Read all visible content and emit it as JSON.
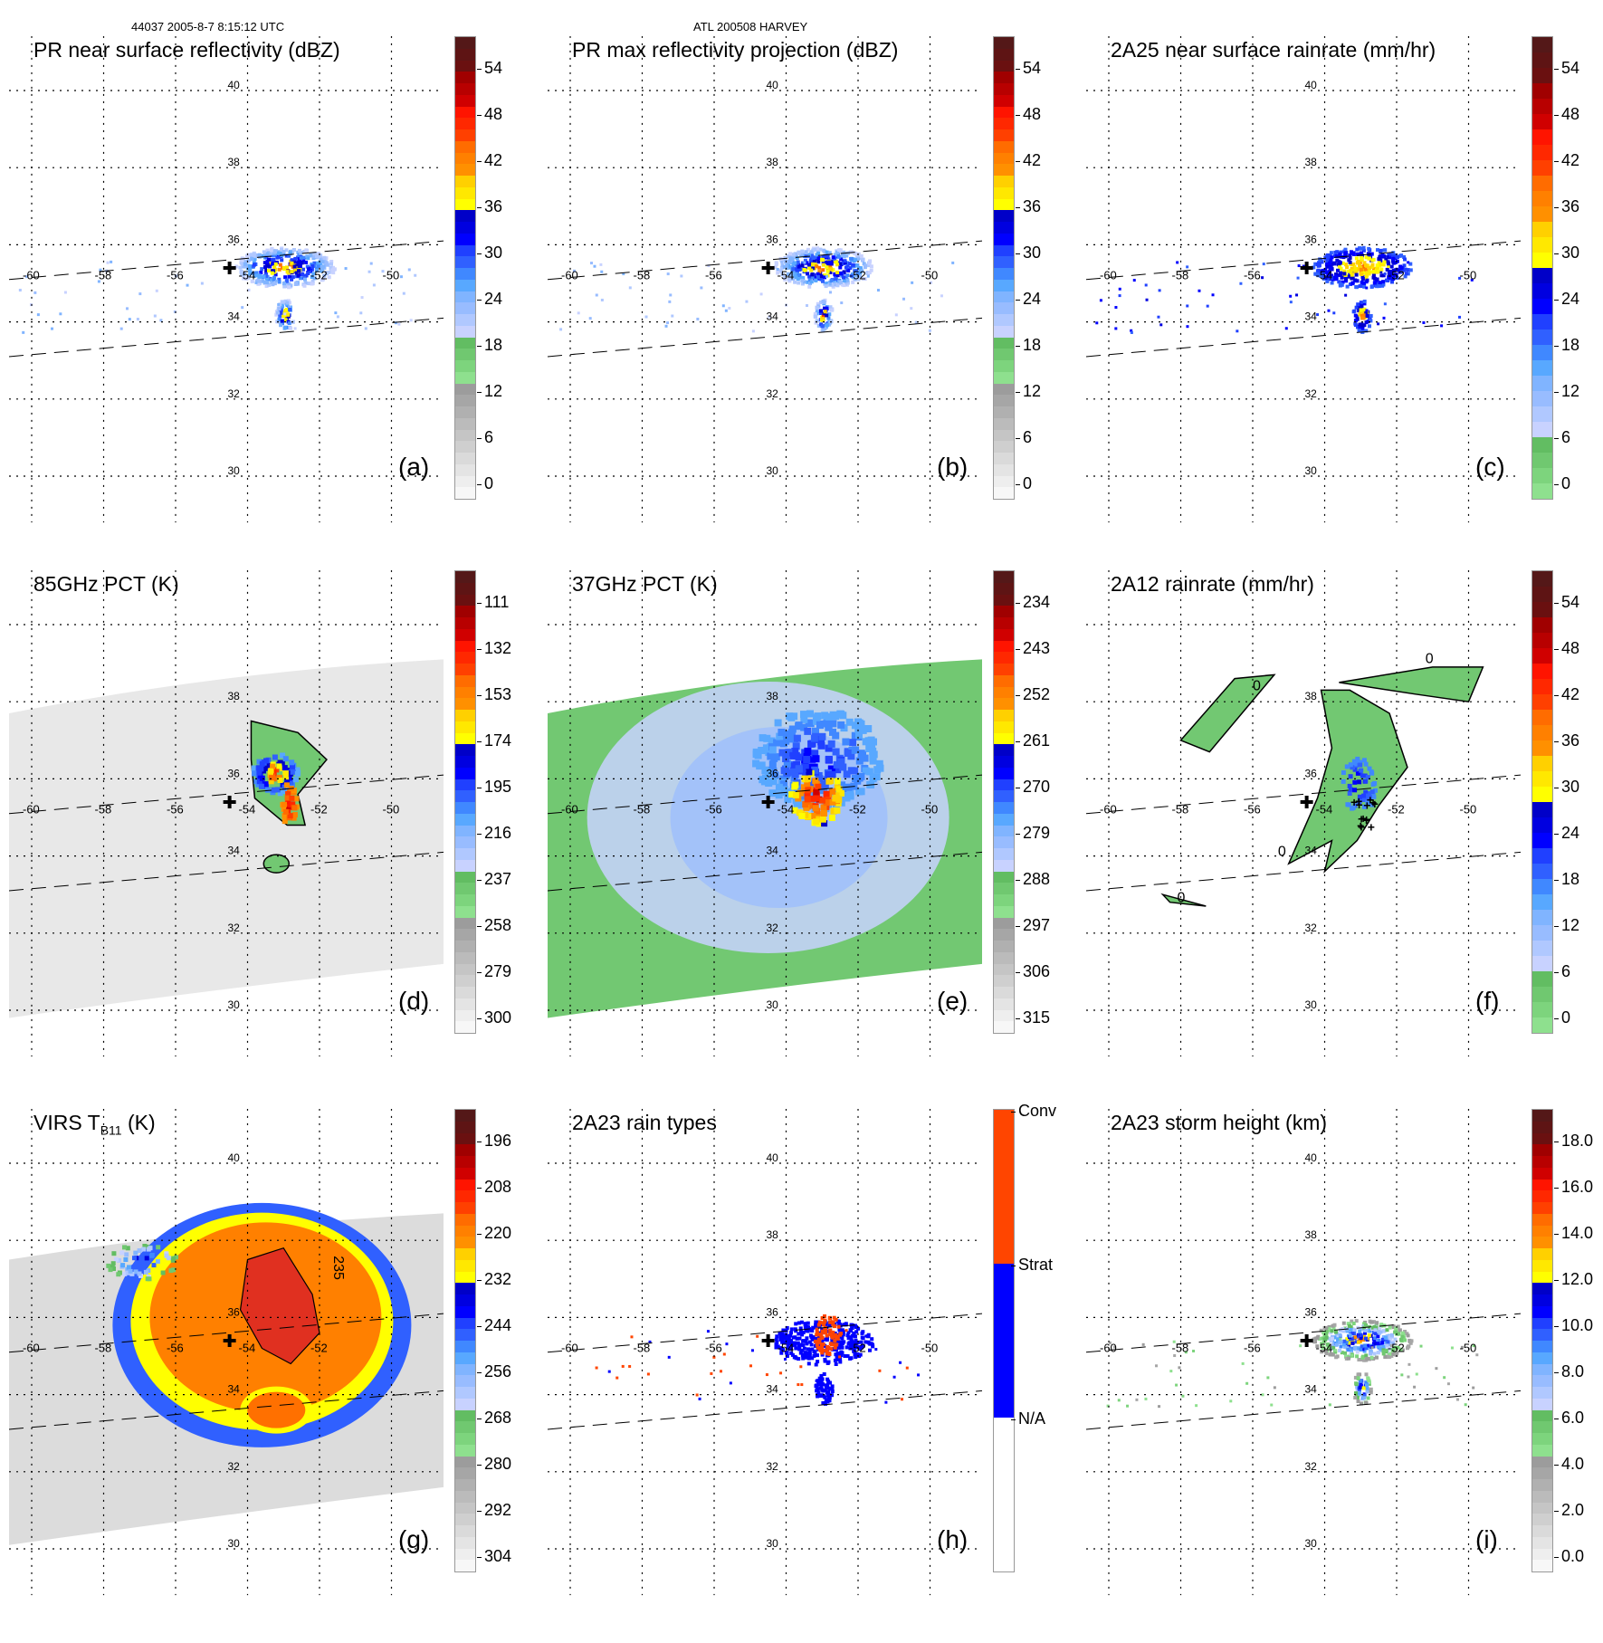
{
  "header": {
    "orbit_time": "44037 2005-8-7 8:15:12 UTC",
    "storm": "ATL 200508 HARVEY"
  },
  "chart_data": [
    {
      "type": "heatmap",
      "id": "a",
      "title": "PR near surface reflectivity (dBZ)",
      "label": "(a)",
      "xticks": [
        -60,
        -58,
        -56,
        -54,
        -52,
        -50
      ],
      "yticks": [
        40,
        38,
        36,
        34,
        32,
        30
      ],
      "colorbar": {
        "ticks": [
          "54",
          "48",
          "42",
          "36",
          "30",
          "24",
          "18",
          "12",
          "6",
          "0"
        ],
        "range": [
          0,
          60
        ],
        "scheme": "standard"
      },
      "swath": "pr",
      "storm_center": [
        -54.5,
        35.4
      ]
    },
    {
      "type": "heatmap",
      "id": "b",
      "title": "PR max reflectivity projection (dBZ)",
      "label": "(b)",
      "xticks": [
        -60,
        -58,
        -56,
        -54,
        -52,
        -50
      ],
      "yticks": [
        40,
        38,
        36,
        34,
        32,
        30
      ],
      "colorbar": {
        "ticks": [
          "54",
          "48",
          "42",
          "36",
          "30",
          "24",
          "18",
          "12",
          "6",
          "0"
        ],
        "range": [
          0,
          60
        ],
        "scheme": "standard"
      },
      "swath": "pr",
      "storm_center": [
        -54.5,
        35.4
      ]
    },
    {
      "type": "heatmap",
      "id": "c",
      "title": "2A25 near surface rainrate (mm/hr)",
      "label": "(c)",
      "xticks": [
        -60,
        -58,
        -56,
        -54,
        -52,
        -50
      ],
      "yticks": [
        40,
        38,
        36,
        34,
        32,
        30
      ],
      "colorbar": {
        "ticks": [
          "54",
          "48",
          "42",
          "36",
          "30",
          "24",
          "18",
          "12",
          "6",
          "0"
        ],
        "range": [
          0,
          60
        ],
        "scheme": "rain"
      },
      "swath": "pr",
      "storm_center": [
        -54.5,
        35.4
      ]
    },
    {
      "type": "heatmap",
      "id": "d",
      "title": "85GHz PCT (K)",
      "label": "(d)",
      "xticks": [
        -60,
        -58,
        -56,
        -54,
        -52,
        -50
      ],
      "yticks": [
        38,
        36,
        34,
        32,
        30
      ],
      "colorbar": {
        "ticks": [
          "111",
          "132",
          "153",
          "174",
          "195",
          "216",
          "237",
          "258",
          "279",
          "300"
        ],
        "range": [
          300,
          90
        ],
        "scheme": "standard"
      },
      "swath": "tmi",
      "storm_center": [
        -54.5,
        35.4
      ]
    },
    {
      "type": "heatmap",
      "id": "e",
      "title": "37GHz PCT (K)",
      "label": "(e)",
      "xticks": [
        -60,
        -58,
        -56,
        -54,
        -52,
        -50
      ],
      "yticks": [
        38,
        36,
        34,
        32,
        30
      ],
      "colorbar": {
        "ticks": [
          "234",
          "243",
          "252",
          "261",
          "270",
          "279",
          "288",
          "297",
          "306",
          "315"
        ],
        "range": [
          315,
          225
        ],
        "scheme": "standard"
      },
      "swath": "tmi",
      "storm_center": [
        -54.5,
        35.4
      ]
    },
    {
      "type": "heatmap",
      "id": "f",
      "title": "2A12 rainrate (mm/hr)",
      "label": "(f)",
      "xticks": [
        -60,
        -58,
        -56,
        -54,
        -52,
        -50
      ],
      "yticks": [
        38,
        36,
        34,
        32,
        30
      ],
      "colorbar": {
        "ticks": [
          "54",
          "48",
          "42",
          "36",
          "30",
          "24",
          "18",
          "12",
          "6",
          "0"
        ],
        "range": [
          0,
          60
        ],
        "scheme": "rain"
      },
      "swath": "tmi",
      "storm_center": [
        -54.5,
        35.4
      ],
      "contour_labels": [
        "0",
        "0",
        "0",
        "0"
      ]
    },
    {
      "type": "heatmap",
      "id": "g",
      "title": "VIRS T",
      "title_sub": "B11",
      "title_suffix": " (K)",
      "label": "(g)",
      "xticks": [
        -60,
        -58,
        -56,
        -54,
        -52
      ],
      "yticks": [
        40,
        36,
        34,
        32,
        30
      ],
      "colorbar": {
        "ticks": [
          "196",
          "208",
          "220",
          "232",
          "244",
          "256",
          "268",
          "280",
          "292",
          "304"
        ],
        "range": [
          304,
          184
        ],
        "scheme": "standard"
      },
      "swath": "virs",
      "storm_center": [
        -54.5,
        35.4
      ],
      "contour_labels": [
        "235"
      ]
    },
    {
      "type": "heatmap",
      "id": "h",
      "title": "2A23 rain types",
      "label": "(h)",
      "xticks": [
        -60,
        -58,
        -56,
        -54,
        -52,
        -50
      ],
      "yticks": [
        40,
        38,
        36,
        34,
        32,
        30
      ],
      "colorbar": {
        "categories": [
          {
            "name": "Conv",
            "color": "#ff4500"
          },
          {
            "name": "Strat",
            "color": "#0000ff"
          },
          {
            "name": "N/A",
            "color": "#ffffff"
          }
        ],
        "scheme": "categorical"
      },
      "swath": "pr",
      "storm_center": [
        -54.5,
        35.4
      ]
    },
    {
      "type": "heatmap",
      "id": "i",
      "title": "2A23 storm height (km)",
      "label": "(i)",
      "xticks": [
        -60,
        -58,
        -56,
        -54,
        -52,
        -50
      ],
      "yticks": [
        40,
        38,
        36,
        34,
        32,
        30
      ],
      "colorbar": {
        "ticks": [
          "18.0",
          "16.0",
          "14.0",
          "12.0",
          "10.0",
          "8.0",
          "6.0",
          "4.0",
          "2.0",
          "0.0"
        ],
        "range": [
          0,
          20
        ],
        "scheme": "standard"
      },
      "swath": "pr",
      "storm_center": [
        -54.5,
        35.4
      ]
    }
  ],
  "colors": {
    "standard": [
      "#f7f7f7",
      "#eeeeee",
      "#e4e4e4",
      "#dadada",
      "#cfcfcf",
      "#c5c5c5",
      "#bbbbbb",
      "#b0b0b0",
      "#a6a6a6",
      "#9c9c9c",
      "#8ee08e",
      "#7dd47d",
      "#70c870",
      "#62bd62",
      "#c8d2ff",
      "#b0c8ff",
      "#98bcff",
      "#80b4ff",
      "#58a8ff",
      "#4088ff",
      "#3060ff",
      "#2040ff",
      "#0000ff",
      "#0000e0",
      "#0000c8",
      "#ffff00",
      "#ffe800",
      "#ffd000",
      "#ff9000",
      "#ff8000",
      "#ff6c00",
      "#ff4000",
      "#ff2800",
      "#ff1400",
      "#d00000",
      "#b80000",
      "#a00000",
      "#6a1010",
      "#5e1414",
      "#541818"
    ],
    "rain": [
      "#8ee08e",
      "#7dd47d",
      "#70c870",
      "#62bd62",
      "#c8d2ff",
      "#b0c8ff",
      "#98bcff",
      "#80b4ff",
      "#58a8ff",
      "#4088ff",
      "#3060ff",
      "#2040ff",
      "#0000ff",
      "#0000e0",
      "#0000c8",
      "#ffff00",
      "#ffe800",
      "#ffd000",
      "#ff9000",
      "#ff8000",
      "#ff6c00",
      "#ff4000",
      "#ff2800",
      "#ff1400",
      "#d00000",
      "#b80000",
      "#a00000",
      "#6a1010",
      "#5e1414",
      "#541818"
    ]
  }
}
